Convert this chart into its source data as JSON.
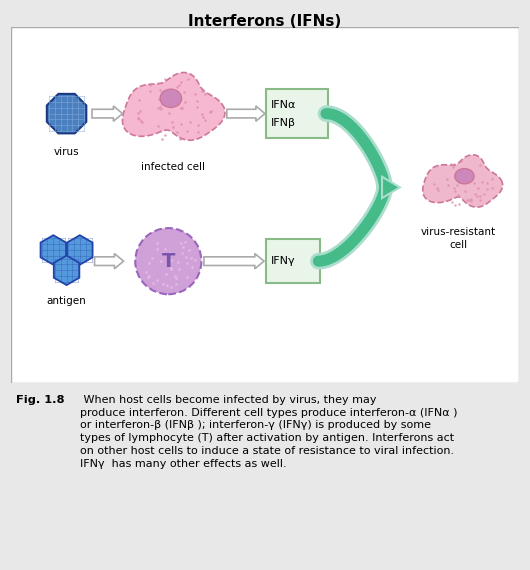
{
  "title": "Interferons (IFNs)",
  "bg_color": "#e8e8e8",
  "diagram_bg": "#ffffff",
  "caption_bold": "Fig. 1.8",
  "caption_text": " When host cells become infected by virus, they may\nproduce interferon. Different cell types produce interferon-α (IFNα )\nor interferon-β (IFNβ ); interferon-γ (IFNγ) is produced by some\ntypes of lymphocyte (T) after activation by antigen. Interferons act\non other host cells to induce a state of resistance to viral infection.\nIFNγ  has many other effects as well.",
  "virus_color": "#4a7fc0",
  "virus_edge": "#1a3a80",
  "infected_cell_color": "#f5b8d0",
  "infected_cell_edge": "#cc7799",
  "nucleus_color": "#cc88bb",
  "t_cell_color": "#d0a0d8",
  "t_cell_edge": "#9966bb",
  "antigen_color": "#5599dd",
  "antigen_edge": "#2244aa",
  "ifn_box_bg": "#e8f5e8",
  "ifn_box_edge": "#88bb88",
  "arrow_white": "#ffffff",
  "arrow_edge": "#aaaaaa",
  "merge_color": "#44bb88",
  "merge_light": "#aaddcc",
  "resistant_cell_color": "#f0b8cc",
  "resistant_cell_edge": "#cc7799",
  "resistant_nucleus_color": "#cc88bb"
}
